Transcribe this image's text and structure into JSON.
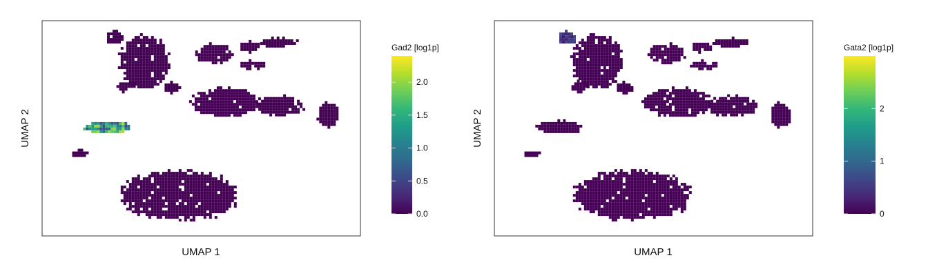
{
  "colors": {
    "background": "#ffffff",
    "frame": "#333333",
    "cell_zero": "#440154",
    "viridis": [
      "#440154",
      "#482878",
      "#3e4989",
      "#31688e",
      "#26828e",
      "#1f9e89",
      "#35b779",
      "#6ece58",
      "#b5de2b",
      "#fde725"
    ]
  },
  "panels": [
    {
      "xlabel": "UMAP 1",
      "ylabel": "UMAP 2",
      "colorbar_title": "Gad2 [log1p]",
      "colorbar_ticks": [
        "0.0",
        "0.5",
        "1.0",
        "1.5",
        "2.0"
      ],
      "highlight_cluster": "left-mid"
    },
    {
      "xlabel": "UMAP 1",
      "ylabel": "UMAP 2",
      "colorbar_title": "Gata2 [log1p]",
      "colorbar_ticks": [
        "0",
        "1",
        "2"
      ],
      "highlight_cluster": "top-left"
    }
  ],
  "chart_data": [
    {
      "type": "scatter",
      "subtype": "hexbin-embedding",
      "xlabel": "UMAP 1",
      "ylabel": "UMAP 2",
      "color_variable": "Gad2 [log1p]",
      "color_range": [
        0.0,
        2.4
      ],
      "colorbar_ticks": [
        0.0,
        0.5,
        1.0,
        1.5,
        2.0
      ],
      "colormap": "viridis",
      "axis_ticks_shown": false,
      "grid": false,
      "clusters": [
        {
          "cx": 4.7,
          "cy": 8.6,
          "rx": 0.6,
          "ry": 0.6,
          "value": 0.0
        },
        {
          "cx": 6.7,
          "cy": 6.5,
          "rx": 1.7,
          "ry": 2.4,
          "value": 0.0
        },
        {
          "cx": 5.5,
          "cy": 4.3,
          "rx": 0.6,
          "ry": 0.5,
          "value": 0.0
        },
        {
          "cx": 8.5,
          "cy": 4.2,
          "rx": 0.6,
          "ry": 0.5,
          "value": 0.0
        },
        {
          "cx": 11.3,
          "cy": 7.2,
          "rx": 1.2,
          "ry": 0.9,
          "value": 0.0
        },
        {
          "cx": 13.6,
          "cy": 7.8,
          "rx": 0.7,
          "ry": 0.5,
          "value": 0.0
        },
        {
          "cx": 15.5,
          "cy": 8.2,
          "rx": 1.3,
          "ry": 0.4,
          "value": 0.0
        },
        {
          "cx": 13.8,
          "cy": 6.2,
          "rx": 0.9,
          "ry": 0.4,
          "value": 0.0
        },
        {
          "cx": 12.0,
          "cy": 2.9,
          "rx": 2.3,
          "ry": 1.3,
          "value": 0.0
        },
        {
          "cx": 15.6,
          "cy": 2.6,
          "rx": 1.7,
          "ry": 0.9,
          "value": 0.0
        },
        {
          "cx": 18.8,
          "cy": 1.8,
          "rx": 0.7,
          "ry": 1.1,
          "value": 0.0
        },
        {
          "cx": 4.2,
          "cy": 0.7,
          "rx": 1.5,
          "ry": 0.6,
          "value": 1.4
        },
        {
          "cx": 2.4,
          "cy": -1.6,
          "rx": 0.6,
          "ry": 0.3,
          "value": 0.0
        },
        {
          "cx": 9.0,
          "cy": -5.3,
          "rx": 4.0,
          "ry": 2.2,
          "value": 0.0
        }
      ]
    },
    {
      "type": "scatter",
      "subtype": "hexbin-embedding",
      "xlabel": "UMAP 1",
      "ylabel": "UMAP 2",
      "color_variable": "Gata2 [log1p]",
      "color_range": [
        0,
        3.0
      ],
      "colorbar_ticks": [
        0,
        1,
        2
      ],
      "colormap": "viridis",
      "axis_ticks_shown": false,
      "grid": false,
      "clusters": [
        {
          "cx": 4.7,
          "cy": 8.6,
          "rx": 0.6,
          "ry": 0.6,
          "value": 0.5
        },
        {
          "cx": 6.7,
          "cy": 6.5,
          "rx": 1.7,
          "ry": 2.4,
          "value": 0.0
        },
        {
          "cx": 5.5,
          "cy": 4.3,
          "rx": 0.6,
          "ry": 0.5,
          "value": 0.0
        },
        {
          "cx": 8.5,
          "cy": 4.2,
          "rx": 0.6,
          "ry": 0.5,
          "value": 0.0
        },
        {
          "cx": 11.3,
          "cy": 7.2,
          "rx": 1.2,
          "ry": 0.9,
          "value": 0.0
        },
        {
          "cx": 13.6,
          "cy": 7.8,
          "rx": 0.7,
          "ry": 0.5,
          "value": 0.0
        },
        {
          "cx": 15.5,
          "cy": 8.2,
          "rx": 1.3,
          "ry": 0.4,
          "value": 0.0
        },
        {
          "cx": 13.8,
          "cy": 6.2,
          "rx": 0.9,
          "ry": 0.4,
          "value": 0.0
        },
        {
          "cx": 12.0,
          "cy": 2.9,
          "rx": 2.3,
          "ry": 1.3,
          "value": 0.0
        },
        {
          "cx": 15.6,
          "cy": 2.6,
          "rx": 1.7,
          "ry": 0.9,
          "value": 0.0
        },
        {
          "cx": 18.8,
          "cy": 1.8,
          "rx": 0.7,
          "ry": 1.1,
          "value": 0.0
        },
        {
          "cx": 4.2,
          "cy": 0.7,
          "rx": 1.5,
          "ry": 0.6,
          "value": 0.0
        },
        {
          "cx": 2.4,
          "cy": -1.6,
          "rx": 0.6,
          "ry": 0.3,
          "value": 0.0
        },
        {
          "cx": 9.0,
          "cy": -5.3,
          "rx": 4.0,
          "ry": 2.2,
          "value": 0.0
        }
      ]
    }
  ]
}
